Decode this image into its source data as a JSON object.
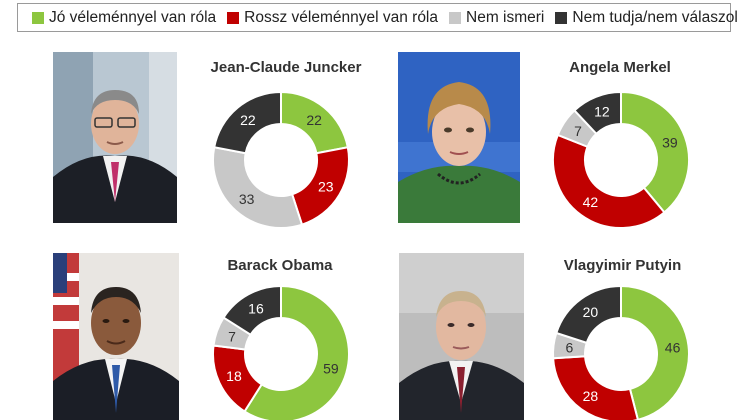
{
  "legend": [
    {
      "label": "Jó véleménnyel van róla",
      "color": "#8dc63f"
    },
    {
      "label": "Rossz véleménnyel van róla",
      "color": "#c00000"
    },
    {
      "label": "Nem ismeri",
      "color": "#c8c8c8"
    },
    {
      "label": "Nem tudja/nem válaszol",
      "color": "#333333"
    }
  ],
  "chart_data": [
    {
      "type": "pie",
      "title": "Jean-Claude Juncker",
      "categories": [
        "Jó véleménnyel van róla",
        "Rossz véleménnyel van róla",
        "Nem ismeri",
        "Nem tudja/nem válaszol"
      ],
      "values": [
        22,
        23,
        33,
        22
      ]
    },
    {
      "type": "pie",
      "title": "Angela Merkel",
      "categories": [
        "Jó véleménnyel van róla",
        "Rossz véleménnyel van róla",
        "Nem ismeri",
        "Nem tudja/nem válaszol"
      ],
      "values": [
        39,
        42,
        7,
        12
      ]
    },
    {
      "type": "pie",
      "title": "Barack Obama",
      "categories": [
        "Jó véleménnyel van róla",
        "Rossz véleménnyel van róla",
        "Nem ismeri",
        "Nem tudja/nem válaszol"
      ],
      "values": [
        59,
        18,
        7,
        16
      ]
    },
    {
      "type": "pie",
      "title": "Vlagyimir Putyin",
      "categories": [
        "Jó véleménnyel van róla",
        "Rossz véleménnyel van róla",
        "Nem ismeri",
        "Nem tudja/nem válaszol"
      ],
      "values": [
        46,
        28,
        6,
        20
      ]
    }
  ],
  "colors": [
    "#8dc63f",
    "#c00000",
    "#c8c8c8",
    "#333333"
  ],
  "label_colors": [
    "#333333",
    "#ffffff",
    "#333333",
    "#ffffff"
  ]
}
